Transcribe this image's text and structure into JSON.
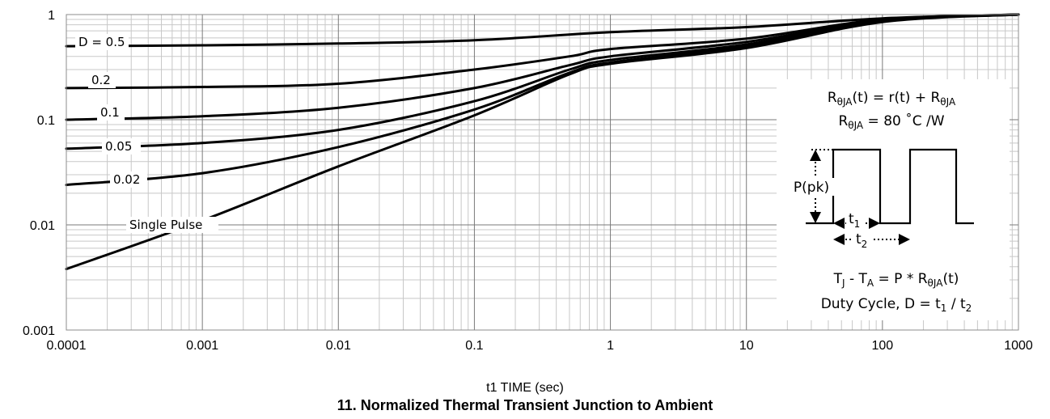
{
  "chart_data": {
    "type": "line",
    "title": "11. Normalized Thermal Transient Junction to Ambient",
    "xlabel": "t1 TIME (sec)",
    "ylabel": "",
    "x_scale": "log",
    "y_scale": "log",
    "xlim": [
      0.0001,
      1000
    ],
    "ylim": [
      0.001,
      1
    ],
    "x_ticks": [
      "0.0001",
      "0.001",
      "0.01",
      "0.1",
      "1",
      "10",
      "100",
      "1000"
    ],
    "y_ticks": [
      "0.001",
      "0.01",
      "0.1",
      "1"
    ],
    "grid": true,
    "series": [
      {
        "name": "D = 0.5",
        "x": [
          0.0001,
          0.001,
          0.01,
          0.1,
          1,
          10,
          100,
          1000
        ],
        "y": [
          0.5,
          0.51,
          0.53,
          0.57,
          0.68,
          0.76,
          0.92,
          1.0
        ]
      },
      {
        "name": "0.2",
        "x": [
          0.0001,
          0.001,
          0.01,
          0.1,
          0.5,
          1,
          10,
          100,
          1000
        ],
        "y": [
          0.2,
          0.205,
          0.22,
          0.3,
          0.4,
          0.47,
          0.59,
          0.9,
          1.0
        ]
      },
      {
        "name": "0.1",
        "x": [
          0.0001,
          0.001,
          0.01,
          0.1,
          0.5,
          1,
          10,
          100,
          1000
        ],
        "y": [
          0.1,
          0.108,
          0.13,
          0.2,
          0.33,
          0.4,
          0.55,
          0.88,
          1.0
        ]
      },
      {
        "name": "0.05",
        "x": [
          0.0001,
          0.001,
          0.01,
          0.1,
          0.5,
          1,
          10,
          100,
          1000
        ],
        "y": [
          0.053,
          0.06,
          0.08,
          0.15,
          0.3,
          0.37,
          0.52,
          0.87,
          1.0
        ]
      },
      {
        "name": "0.02",
        "x": [
          0.0001,
          0.001,
          0.01,
          0.1,
          0.5,
          1,
          10,
          100,
          1000
        ],
        "y": [
          0.024,
          0.031,
          0.055,
          0.125,
          0.28,
          0.35,
          0.5,
          0.86,
          1.0
        ]
      },
      {
        "name": "Single Pulse",
        "x": [
          0.0001,
          0.001,
          0.01,
          0.1,
          0.5,
          1,
          10,
          100,
          1000
        ],
        "y": [
          0.0038,
          0.011,
          0.036,
          0.11,
          0.27,
          0.34,
          0.48,
          0.85,
          1.0
        ]
      }
    ],
    "curve_labels": [
      "D = 0.5",
      "0.2",
      "0.1",
      "0.05",
      "0.02",
      "Single Pulse"
    ],
    "inset": {
      "equation_1": {
        "parts": [
          "R",
          "θJA",
          "(t) = r(t) + R",
          "θJA",
          ""
        ]
      },
      "equation_2": {
        "parts": [
          "R",
          "θJA",
          " = 80 ˚C /W"
        ]
      },
      "pulse_label": "P(pk)",
      "t1_label": {
        "base": "t",
        "sub": "1"
      },
      "t2_label": {
        "base": "t",
        "sub": "2"
      },
      "equation_3": {
        "parts": [
          "T",
          "J",
          " - T",
          "A",
          " = P * R",
          "θJA",
          "(t)"
        ]
      },
      "equation_4": {
        "parts": [
          "Duty Cycle, D = t",
          "1",
          " / t",
          "2"
        ]
      }
    }
  }
}
